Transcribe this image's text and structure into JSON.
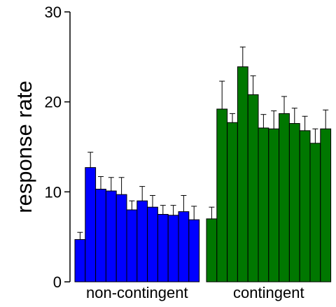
{
  "chart_data": {
    "type": "bar",
    "title": "",
    "xlabel": "",
    "ylabel": "response rate",
    "ylim": [
      0,
      30
    ],
    "yticks": [
      "0",
      "10",
      "20",
      "30"
    ],
    "grid": false,
    "error_bars": "upper",
    "groups": [
      {
        "label": "non-contingent",
        "color": "#0000ff",
        "values": [
          4.7,
          12.7,
          10.3,
          10.1,
          9.7,
          8.0,
          9.0,
          8.3,
          7.5,
          7.4,
          7.8,
          6.9
        ],
        "errors": [
          0.8,
          1.7,
          1.4,
          1.5,
          1.9,
          1.0,
          1.6,
          1.3,
          1.0,
          1.1,
          1.8,
          1.5
        ]
      },
      {
        "label": "contingent",
        "color": "#007700",
        "values": [
          7.0,
          19.2,
          17.7,
          23.9,
          20.8,
          17.1,
          17.0,
          18.7,
          17.6,
          16.8,
          15.4,
          17.0
        ],
        "errors": [
          1.3,
          3.1,
          1.0,
          2.2,
          2.1,
          1.5,
          2.0,
          1.9,
          1.7,
          1.6,
          1.6,
          2.1
        ]
      }
    ]
  }
}
